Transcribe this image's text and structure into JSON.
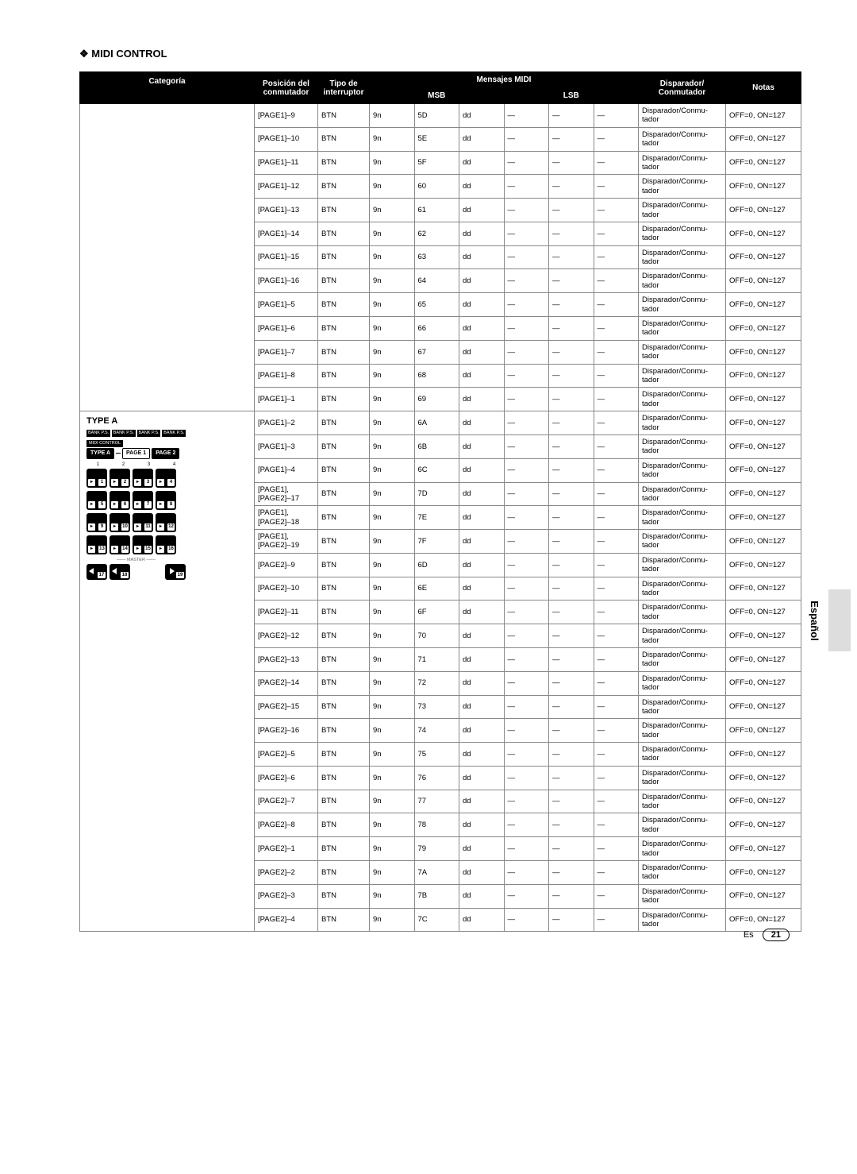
{
  "section_title": "❖ MIDI CONTROL",
  "headers": {
    "categoria": "Categoría",
    "posicion": "Posición del conmutador",
    "tipo": "Tipo de interruptor",
    "mensajes": "Mensajes MIDI",
    "msb": "MSB",
    "lsb": "LSB",
    "disparador": "Disparador/ Conmutador",
    "notas": "Notas"
  },
  "category_label": "TYPE A",
  "diagram": {
    "bank_labels": [
      "BANK P.S.",
      "BANK P.S.",
      "BANK P.S.",
      "BANK P.S."
    ],
    "midi_control": "MIDI CONTROL",
    "type_a": "TYPE A",
    "page1": "PAGE 1",
    "page2": "PAGE 2",
    "row_nums_top": [
      "1",
      "2",
      "3",
      "4"
    ],
    "master": "MASTER",
    "pads": [
      [
        "1",
        "2",
        "3",
        "4"
      ],
      [
        "5",
        "6",
        "7",
        "8"
      ],
      [
        "9",
        "10",
        "11",
        "12"
      ],
      [
        "13",
        "14",
        "15",
        "16"
      ]
    ],
    "master_pads": [
      "17",
      "18",
      "19"
    ]
  },
  "disp_text": "Disparador/Conmu-tador",
  "notas_text": "OFF=0, ON=127",
  "tipo_val": "BTN",
  "m1": "9n",
  "m3": "dd",
  "dash": "—",
  "rows": [
    {
      "pos": "[PAGE1]–9",
      "m2": "5D"
    },
    {
      "pos": "[PAGE1]–10",
      "m2": "5E"
    },
    {
      "pos": "[PAGE1]–11",
      "m2": "5F"
    },
    {
      "pos": "[PAGE1]–12",
      "m2": "60"
    },
    {
      "pos": "[PAGE1]–13",
      "m2": "61"
    },
    {
      "pos": "[PAGE1]–14",
      "m2": "62"
    },
    {
      "pos": "[PAGE1]–15",
      "m2": "63"
    },
    {
      "pos": "[PAGE1]–16",
      "m2": "64"
    },
    {
      "pos": "[PAGE1]–5",
      "m2": "65"
    },
    {
      "pos": "[PAGE1]–6",
      "m2": "66"
    },
    {
      "pos": "[PAGE1]–7",
      "m2": "67"
    },
    {
      "pos": "[PAGE1]–8",
      "m2": "68"
    },
    {
      "pos": "[PAGE1]–1",
      "m2": "69"
    },
    {
      "pos": "[PAGE1]–2",
      "m2": "6A"
    },
    {
      "pos": "[PAGE1]–3",
      "m2": "6B"
    },
    {
      "pos": "[PAGE1]–4",
      "m2": "6C"
    },
    {
      "pos": "[PAGE1], [PAGE2]–17",
      "m2": "7D"
    },
    {
      "pos": "[PAGE1], [PAGE2]–18",
      "m2": "7E"
    },
    {
      "pos": "[PAGE1], [PAGE2]–19",
      "m2": "7F"
    },
    {
      "pos": "[PAGE2]–9",
      "m2": "6D"
    },
    {
      "pos": "[PAGE2]–10",
      "m2": "6E"
    },
    {
      "pos": "[PAGE2]–11",
      "m2": "6F"
    },
    {
      "pos": "[PAGE2]–12",
      "m2": "70"
    },
    {
      "pos": "[PAGE2]–13",
      "m2": "71"
    },
    {
      "pos": "[PAGE2]–14",
      "m2": "72"
    },
    {
      "pos": "[PAGE2]–15",
      "m2": "73"
    },
    {
      "pos": "[PAGE2]–16",
      "m2": "74"
    },
    {
      "pos": "[PAGE2]–5",
      "m2": "75"
    },
    {
      "pos": "[PAGE2]–6",
      "m2": "76"
    },
    {
      "pos": "[PAGE2]–7",
      "m2": "77"
    },
    {
      "pos": "[PAGE2]–8",
      "m2": "78"
    },
    {
      "pos": "[PAGE2]–1",
      "m2": "79"
    },
    {
      "pos": "[PAGE2]–2",
      "m2": "7A"
    },
    {
      "pos": "[PAGE2]–3",
      "m2": "7B"
    },
    {
      "pos": "[PAGE2]–4",
      "m2": "7C"
    }
  ],
  "side_tab": "Español",
  "page_lang": "Es",
  "page_number": "21"
}
